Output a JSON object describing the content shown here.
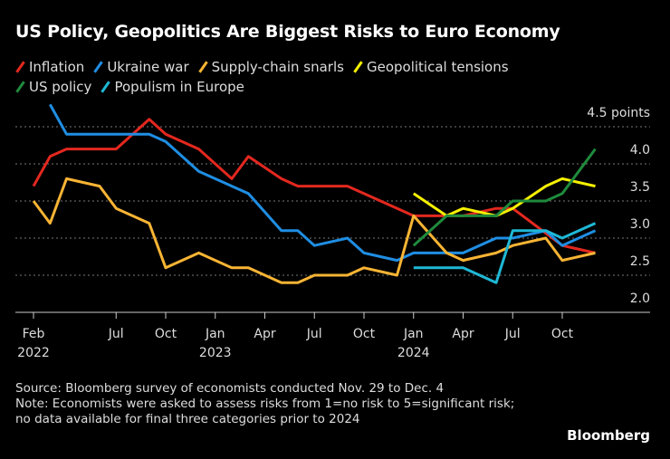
{
  "chart_data": {
    "type": "line",
    "title": "US Policy, Geopolitics Are Biggest Risks to Euro Economy",
    "ylabel": "points",
    "ylim": [
      2.0,
      4.5
    ],
    "yticks": [
      "4.5 points",
      "4.0",
      "3.5",
      "3.0",
      "2.5",
      "2.0"
    ],
    "ytick_values": [
      4.5,
      4.0,
      3.5,
      3.0,
      2.5,
      2.0
    ],
    "xrange": [
      "2022-02",
      "2024-12"
    ],
    "xticks": [
      {
        "month": "2022-02",
        "label": "Feb",
        "year": "2022"
      },
      {
        "month": "2022-07",
        "label": "Jul"
      },
      {
        "month": "2022-10",
        "label": "Oct"
      },
      {
        "month": "2023-01",
        "label": "Jan",
        "year": "2023"
      },
      {
        "month": "2023-04",
        "label": "Apr"
      },
      {
        "month": "2023-07",
        "label": "Jul"
      },
      {
        "month": "2023-10",
        "label": "Oct"
      },
      {
        "month": "2024-01",
        "label": "Jan",
        "year": "2024"
      },
      {
        "month": "2024-04",
        "label": "Apr"
      },
      {
        "month": "2024-07",
        "label": "Jul"
      },
      {
        "month": "2024-10",
        "label": "Oct"
      }
    ],
    "grid": true,
    "legend_position": "top",
    "series": [
      {
        "name": "Inflation",
        "color": "#e3281f",
        "points": [
          [
            "2022-02",
            3.7
          ],
          [
            "2022-03",
            4.1
          ],
          [
            "2022-04",
            4.2
          ],
          [
            "2022-07",
            4.2
          ],
          [
            "2022-09",
            4.6
          ],
          [
            "2022-10",
            4.4
          ],
          [
            "2022-12",
            4.2
          ],
          [
            "2023-02",
            3.8
          ],
          [
            "2023-03",
            4.1
          ],
          [
            "2023-05",
            3.8
          ],
          [
            "2023-06",
            3.7
          ],
          [
            "2023-09",
            3.7
          ],
          [
            "2024-01",
            3.3
          ],
          [
            "2024-04",
            3.3
          ],
          [
            "2024-06",
            3.4
          ],
          [
            "2024-07",
            3.4
          ],
          [
            "2024-10",
            2.9
          ],
          [
            "2024-12",
            2.8
          ]
        ]
      },
      {
        "name": "Ukraine war",
        "color": "#1f8ee3",
        "points": [
          [
            "2022-03",
            4.8
          ],
          [
            "2022-04",
            4.4
          ],
          [
            "2022-09",
            4.4
          ],
          [
            "2022-10",
            4.3
          ],
          [
            "2022-12",
            3.9
          ],
          [
            "2023-02",
            3.7
          ],
          [
            "2023-03",
            3.6
          ],
          [
            "2023-05",
            3.1
          ],
          [
            "2023-06",
            3.1
          ],
          [
            "2023-07",
            2.9
          ],
          [
            "2023-09",
            3.0
          ],
          [
            "2023-10",
            2.8
          ],
          [
            "2023-12",
            2.7
          ],
          [
            "2024-01",
            2.8
          ],
          [
            "2024-04",
            2.8
          ],
          [
            "2024-06",
            3.0
          ],
          [
            "2024-07",
            3.0
          ],
          [
            "2024-09",
            3.1
          ],
          [
            "2024-10",
            2.9
          ],
          [
            "2024-12",
            3.1
          ]
        ]
      },
      {
        "name": "Supply-chain snarls",
        "color": "#f8b434",
        "points": [
          [
            "2022-02",
            3.5
          ],
          [
            "2022-03",
            3.2
          ],
          [
            "2022-04",
            3.8
          ],
          [
            "2022-06",
            3.7
          ],
          [
            "2022-07",
            3.4
          ],
          [
            "2022-09",
            3.2
          ],
          [
            "2022-10",
            2.6
          ],
          [
            "2022-12",
            2.8
          ],
          [
            "2023-02",
            2.6
          ],
          [
            "2023-03",
            2.6
          ],
          [
            "2023-05",
            2.4
          ],
          [
            "2023-06",
            2.4
          ],
          [
            "2023-07",
            2.5
          ],
          [
            "2023-09",
            2.5
          ],
          [
            "2023-10",
            2.6
          ],
          [
            "2023-12",
            2.5
          ],
          [
            "2024-01",
            3.3
          ],
          [
            "2024-03",
            2.8
          ],
          [
            "2024-04",
            2.7
          ],
          [
            "2024-06",
            2.8
          ],
          [
            "2024-07",
            2.9
          ],
          [
            "2024-09",
            3.0
          ],
          [
            "2024-10",
            2.7
          ],
          [
            "2024-12",
            2.8
          ]
        ]
      },
      {
        "name": "Geopolitical tensions",
        "color": "#f5f000",
        "points": [
          [
            "2024-01",
            3.6
          ],
          [
            "2024-03",
            3.3
          ],
          [
            "2024-04",
            3.4
          ],
          [
            "2024-06",
            3.3
          ],
          [
            "2024-07",
            3.4
          ],
          [
            "2024-09",
            3.7
          ],
          [
            "2024-10",
            3.8
          ],
          [
            "2024-12",
            3.7
          ]
        ]
      },
      {
        "name": "US policy",
        "color": "#1f8a3c",
        "points": [
          [
            "2024-01",
            2.9
          ],
          [
            "2024-03",
            3.3
          ],
          [
            "2024-06",
            3.3
          ],
          [
            "2024-07",
            3.5
          ],
          [
            "2024-09",
            3.5
          ],
          [
            "2024-10",
            3.6
          ],
          [
            "2024-12",
            4.2
          ]
        ]
      },
      {
        "name": "Populism in Europe",
        "color": "#1fb8d6",
        "points": [
          [
            "2024-01",
            2.6
          ],
          [
            "2024-04",
            2.6
          ],
          [
            "2024-06",
            2.4
          ],
          [
            "2024-07",
            3.1
          ],
          [
            "2024-09",
            3.1
          ],
          [
            "2024-10",
            3.0
          ],
          [
            "2024-12",
            3.2
          ]
        ]
      }
    ]
  },
  "footer": {
    "source": "Source: Bloomberg survey of economists conducted Nov. 29 to Dec. 4",
    "note": "Note: Economists were asked to assess risks from 1=no risk to 5=significant risk; no data available for final three categories prior to 2024",
    "logo": "Bloomberg"
  }
}
